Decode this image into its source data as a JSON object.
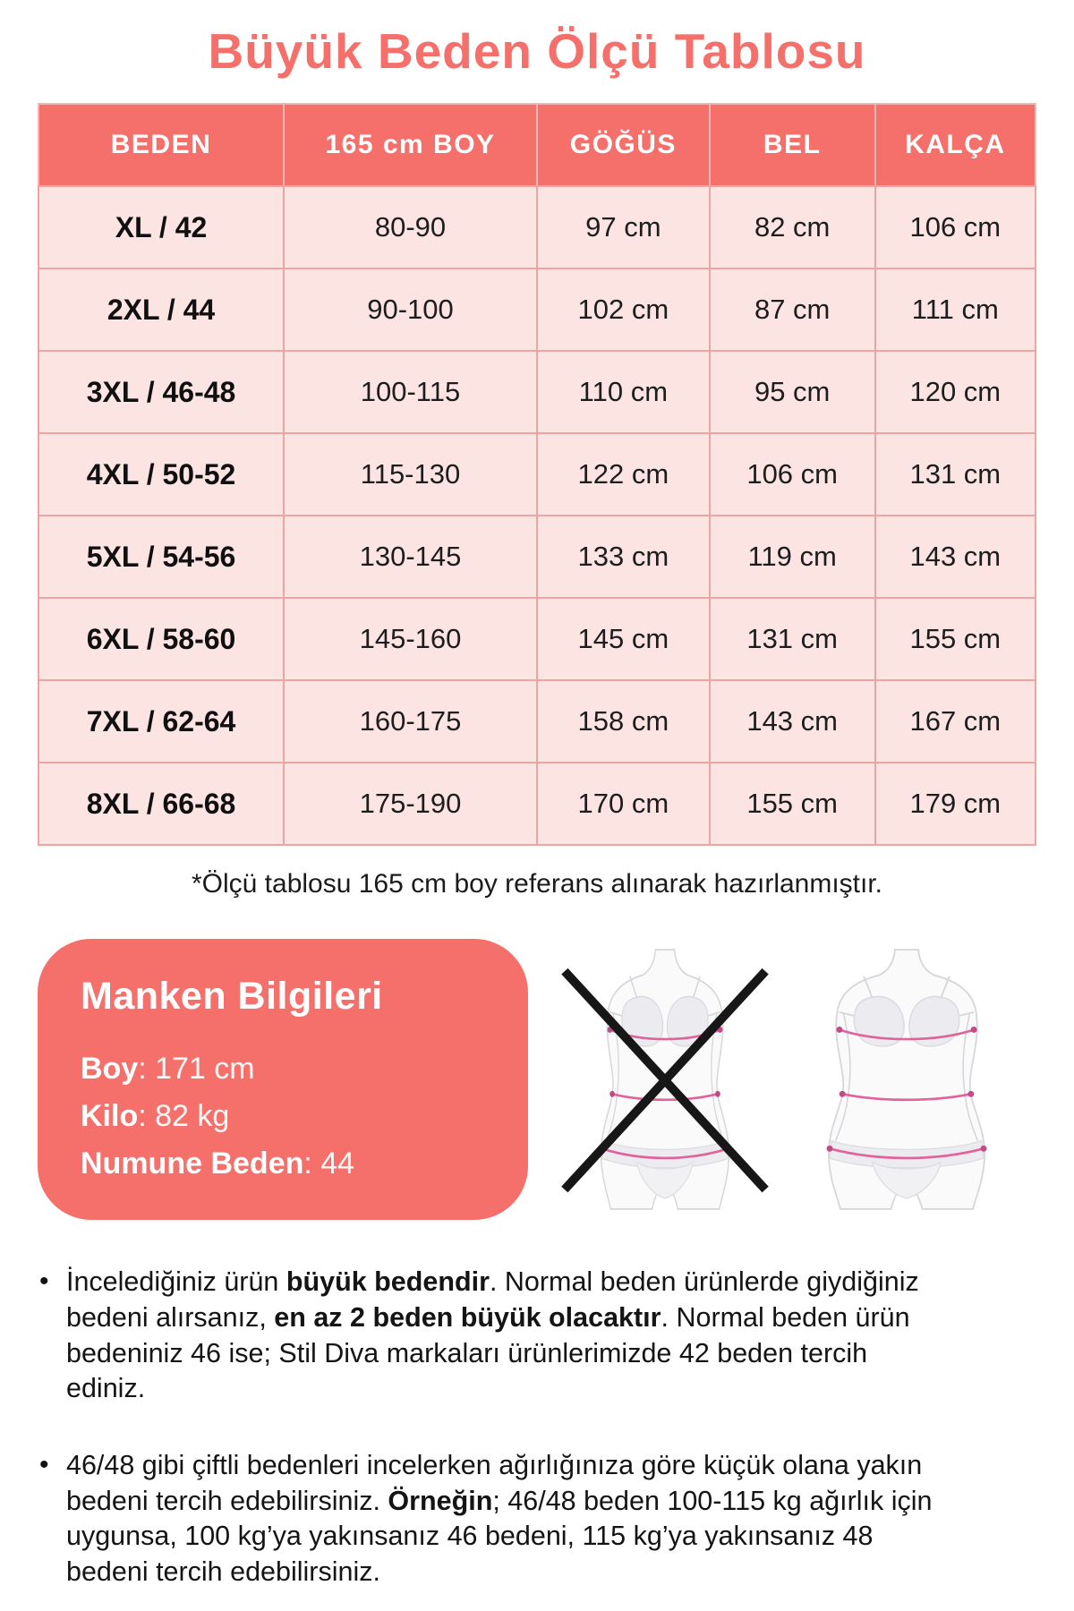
{
  "page": {
    "title": "Büyük Beden Ölçü Tablosu",
    "footnote": "*Ölçü tablosu 165 cm boy referans alınarak hazırlanmıştır.",
    "bullet_glyph": "•"
  },
  "colors": {
    "coral": "#f5706b",
    "row_pink": "#fce4e3",
    "table_border": "#eda5a3",
    "text_dark": "#1d1d1d",
    "measure_line": "#e0639b",
    "measure_dot": "#c24b86",
    "figure_outline": "#d5d5da",
    "figure_fill": "#fafafb",
    "garment_fill": "#ececf0",
    "x_mark": "#171717"
  },
  "size_table": {
    "headers": [
      "BEDEN",
      "165 cm BOY",
      "GÖĞÜS",
      "BEL",
      "KALÇA"
    ],
    "rows": [
      [
        "XL / 42",
        "80-90",
        "97 cm",
        "82 cm",
        "106 cm"
      ],
      [
        "2XL / 44",
        "90-100",
        "102 cm",
        "87 cm",
        "111 cm"
      ],
      [
        "3XL / 46-48",
        "100-115",
        "110 cm",
        "95 cm",
        "120 cm"
      ],
      [
        "4XL / 50-52",
        "115-130",
        "122 cm",
        "106 cm",
        "131 cm"
      ],
      [
        "5XL / 54-56",
        "130-145",
        "133 cm",
        "119 cm",
        "143 cm"
      ],
      [
        "6XL / 58-60",
        "145-160",
        "145 cm",
        "131 cm",
        "155 cm"
      ],
      [
        "7XL / 62-64",
        "160-175",
        "158 cm",
        "143 cm",
        "167 cm"
      ],
      [
        "8XL / 66-68",
        "175-190",
        "170 cm",
        "155 cm",
        "179 cm"
      ]
    ]
  },
  "model_info": {
    "title": "Manken Bilgileri",
    "separator": ": ",
    "lines": [
      {
        "label": "Boy",
        "value": "171 cm"
      },
      {
        "label": "Kilo",
        "value": "82 kg"
      },
      {
        "label": "Numune Beden",
        "value": "44"
      }
    ]
  },
  "figures": [
    {
      "name": "slim-body-crossed-figure",
      "crossed": true
    },
    {
      "name": "plus-size-body-figure",
      "crossed": false
    }
  ],
  "notes": [
    {
      "segments": [
        {
          "text": "İncelediğiniz ürün ",
          "bold": false
        },
        {
          "text": "büyük bedendir",
          "bold": true
        },
        {
          "text": ". Normal beden ürünlerde giydiğiniz bedeni alırsanız, ",
          "bold": false
        },
        {
          "text": "en az 2 beden büyük olacaktır",
          "bold": true
        },
        {
          "text": ". Normal beden ürün bedeniniz 46 ise; Stil Diva markaları ürünlerimizde 42 beden tercih ediniz.",
          "bold": false
        }
      ]
    },
    {
      "segments": [
        {
          "text": "46/48 gibi çiftli bedenleri incelerken ağırlığınıza göre küçük olana yakın bedeni tercih edebilirsiniz. ",
          "bold": false
        },
        {
          "text": "Örneğin",
          "bold": true
        },
        {
          "text": "; 46/48 beden 100-115 kg ağırlık için uygunsa, 100 kg’ya yakınsanız 46 bedeni, 115 kg’ya yakınsanız 48 bedeni tercih edebilirsiniz.",
          "bold": false
        }
      ]
    }
  ]
}
